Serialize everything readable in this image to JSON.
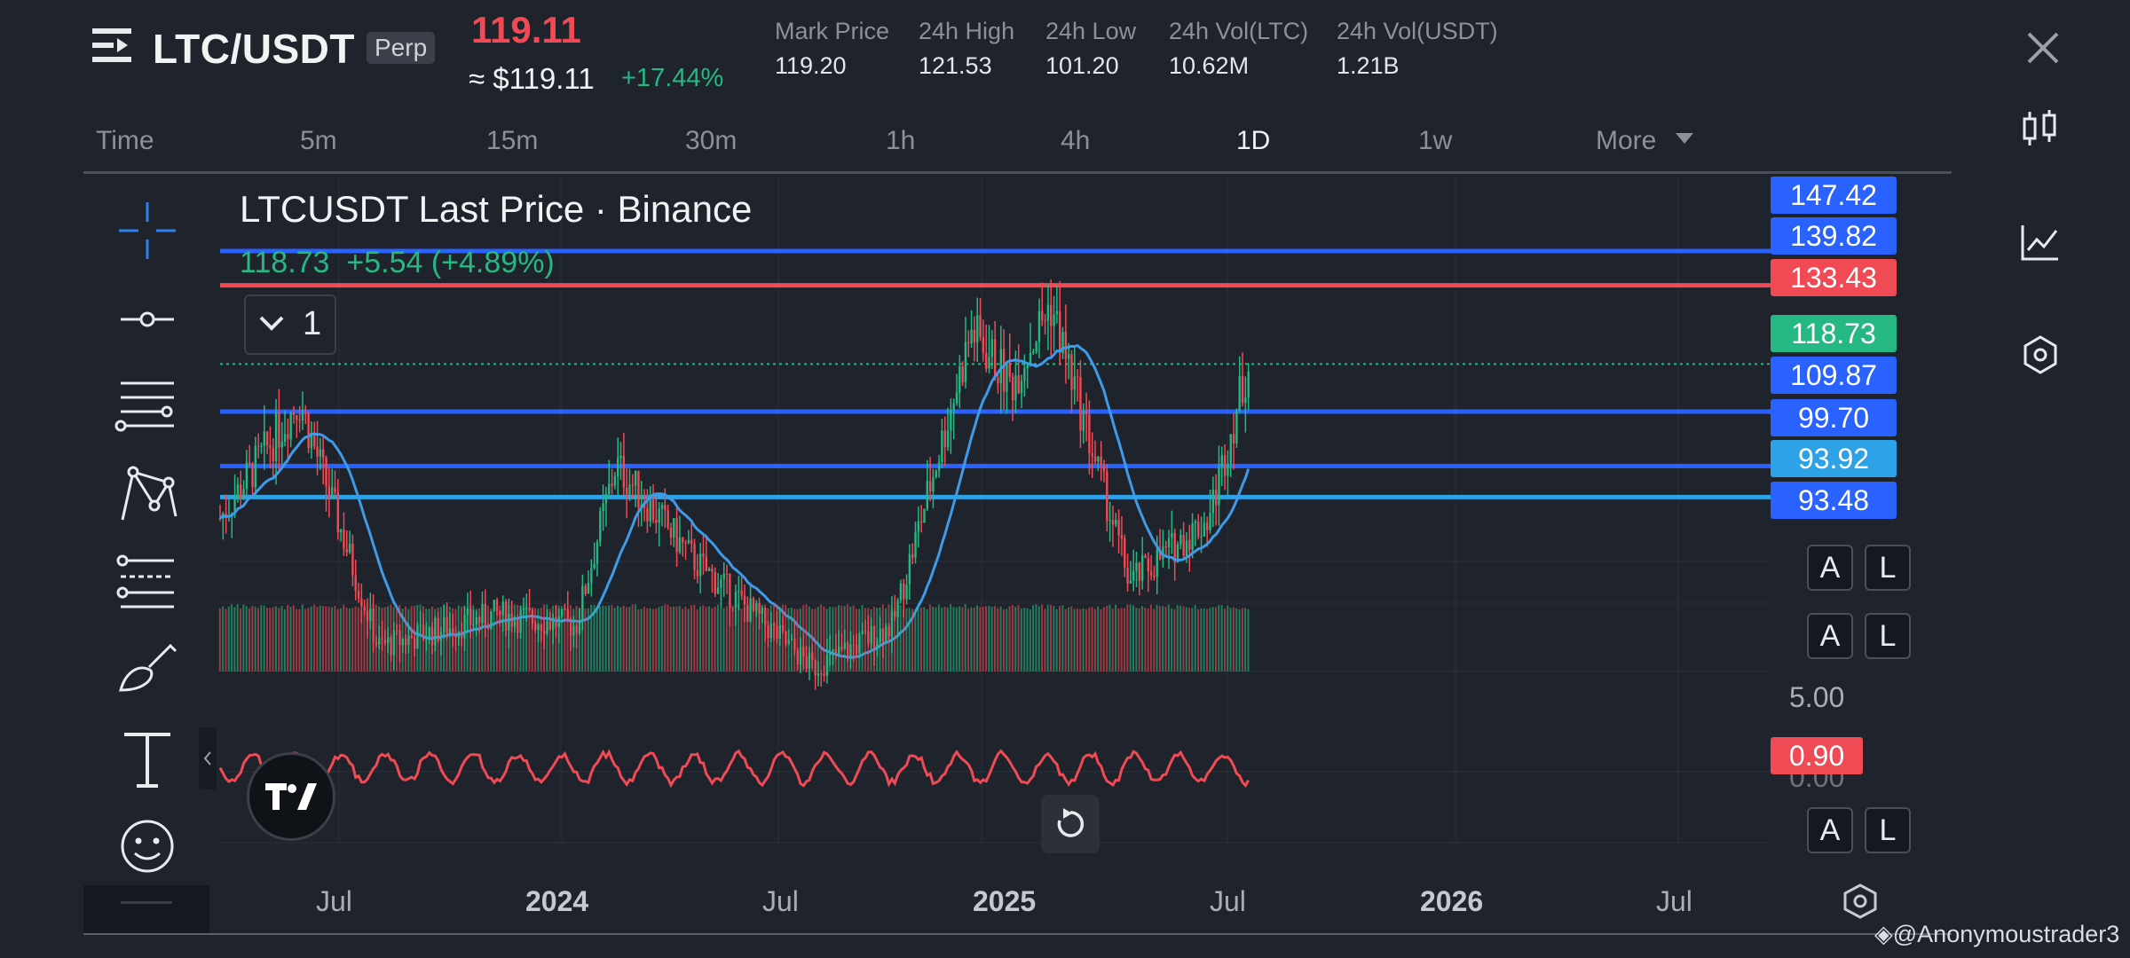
{
  "header": {
    "pair": "LTC/USDT",
    "contract_type": "Perp",
    "last_price": "119.11",
    "usd_price": "≈ $119.11",
    "change_percent": "+17.44%",
    "stats": [
      {
        "label": "Mark Price",
        "value": "119.20"
      },
      {
        "label": "24h High",
        "value": "121.53"
      },
      {
        "label": "24h Low",
        "value": "101.20"
      },
      {
        "label": "24h Vol(LTC)",
        "value": "10.62M"
      },
      {
        "label": "24h Vol(USDT)",
        "value": "1.21B"
      }
    ]
  },
  "timeframes": [
    "Time",
    "5m",
    "15m",
    "30m",
    "1h",
    "4h",
    "1D",
    "1w",
    "More"
  ],
  "active_timeframe": "1D",
  "chart": {
    "legend_title": "LTCUSDT Last Price · Binance",
    "legend_values": "118.73  +5.54 (+4.89%)",
    "collapse_count": "1",
    "indicator_scale": "5.00",
    "indicator_value": "0.90",
    "indicator_partial": "0.00",
    "scale_buttons": {
      "auto": "A",
      "log": "L"
    },
    "watermark": "◈@Anonymoustrader3"
  },
  "colors": {
    "bg": "#1f232b",
    "up": "#25b882",
    "down": "#f04a55",
    "line_blue": "#2962ff",
    "ma_blue": "#3d9be9",
    "indicator_red": "#f04a55"
  },
  "chart_data": {
    "type": "candlestick",
    "title": "LTCUSDT Last Price · Binance",
    "x_ticks": [
      "Jul",
      "2024",
      "Jul",
      "2025",
      "Jul",
      "2026",
      "Jul"
    ],
    "price_lines": [
      {
        "value": 147.42,
        "color": "#2962ff"
      },
      {
        "value": 139.82,
        "color": "#2962ff"
      },
      {
        "value": 133.43,
        "color": "#f04a55"
      },
      {
        "value": 118.73,
        "color": "#25b882",
        "label": "last"
      },
      {
        "value": 109.87,
        "color": "#2962ff"
      },
      {
        "value": 99.7,
        "color": "#2962ff"
      },
      {
        "value": 93.92,
        "color": "#2ea2e6"
      },
      {
        "value": 93.48,
        "color": "#2962ff"
      }
    ],
    "approx_close_path": [
      {
        "date": "2023-05",
        "close": 90
      },
      {
        "date": "2023-07",
        "close": 112
      },
      {
        "date": "2023-09",
        "close": 66
      },
      {
        "date": "2023-12",
        "close": 72
      },
      {
        "date": "2024-02",
        "close": 70
      },
      {
        "date": "2024-03",
        "close": 100
      },
      {
        "date": "2024-05",
        "close": 82
      },
      {
        "date": "2024-08",
        "close": 62
      },
      {
        "date": "2024-10",
        "close": 70
      },
      {
        "date": "2024-12",
        "close": 125
      },
      {
        "date": "2025-01",
        "close": 115
      },
      {
        "date": "2025-02",
        "close": 130
      },
      {
        "date": "2025-04",
        "close": 78
      },
      {
        "date": "2025-06",
        "close": 90
      },
      {
        "date": "2025-07",
        "close": 119
      }
    ]
  }
}
